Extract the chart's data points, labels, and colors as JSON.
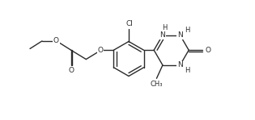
{
  "bg_color": "#ffffff",
  "line_color": "#2a2a2a",
  "line_width": 1.0,
  "font_size": 6.5,
  "figsize": [
    3.15,
    1.49
  ],
  "dpi": 100,
  "xlim": [
    0,
    10.5
  ],
  "ylim": [
    0,
    4.8
  ]
}
